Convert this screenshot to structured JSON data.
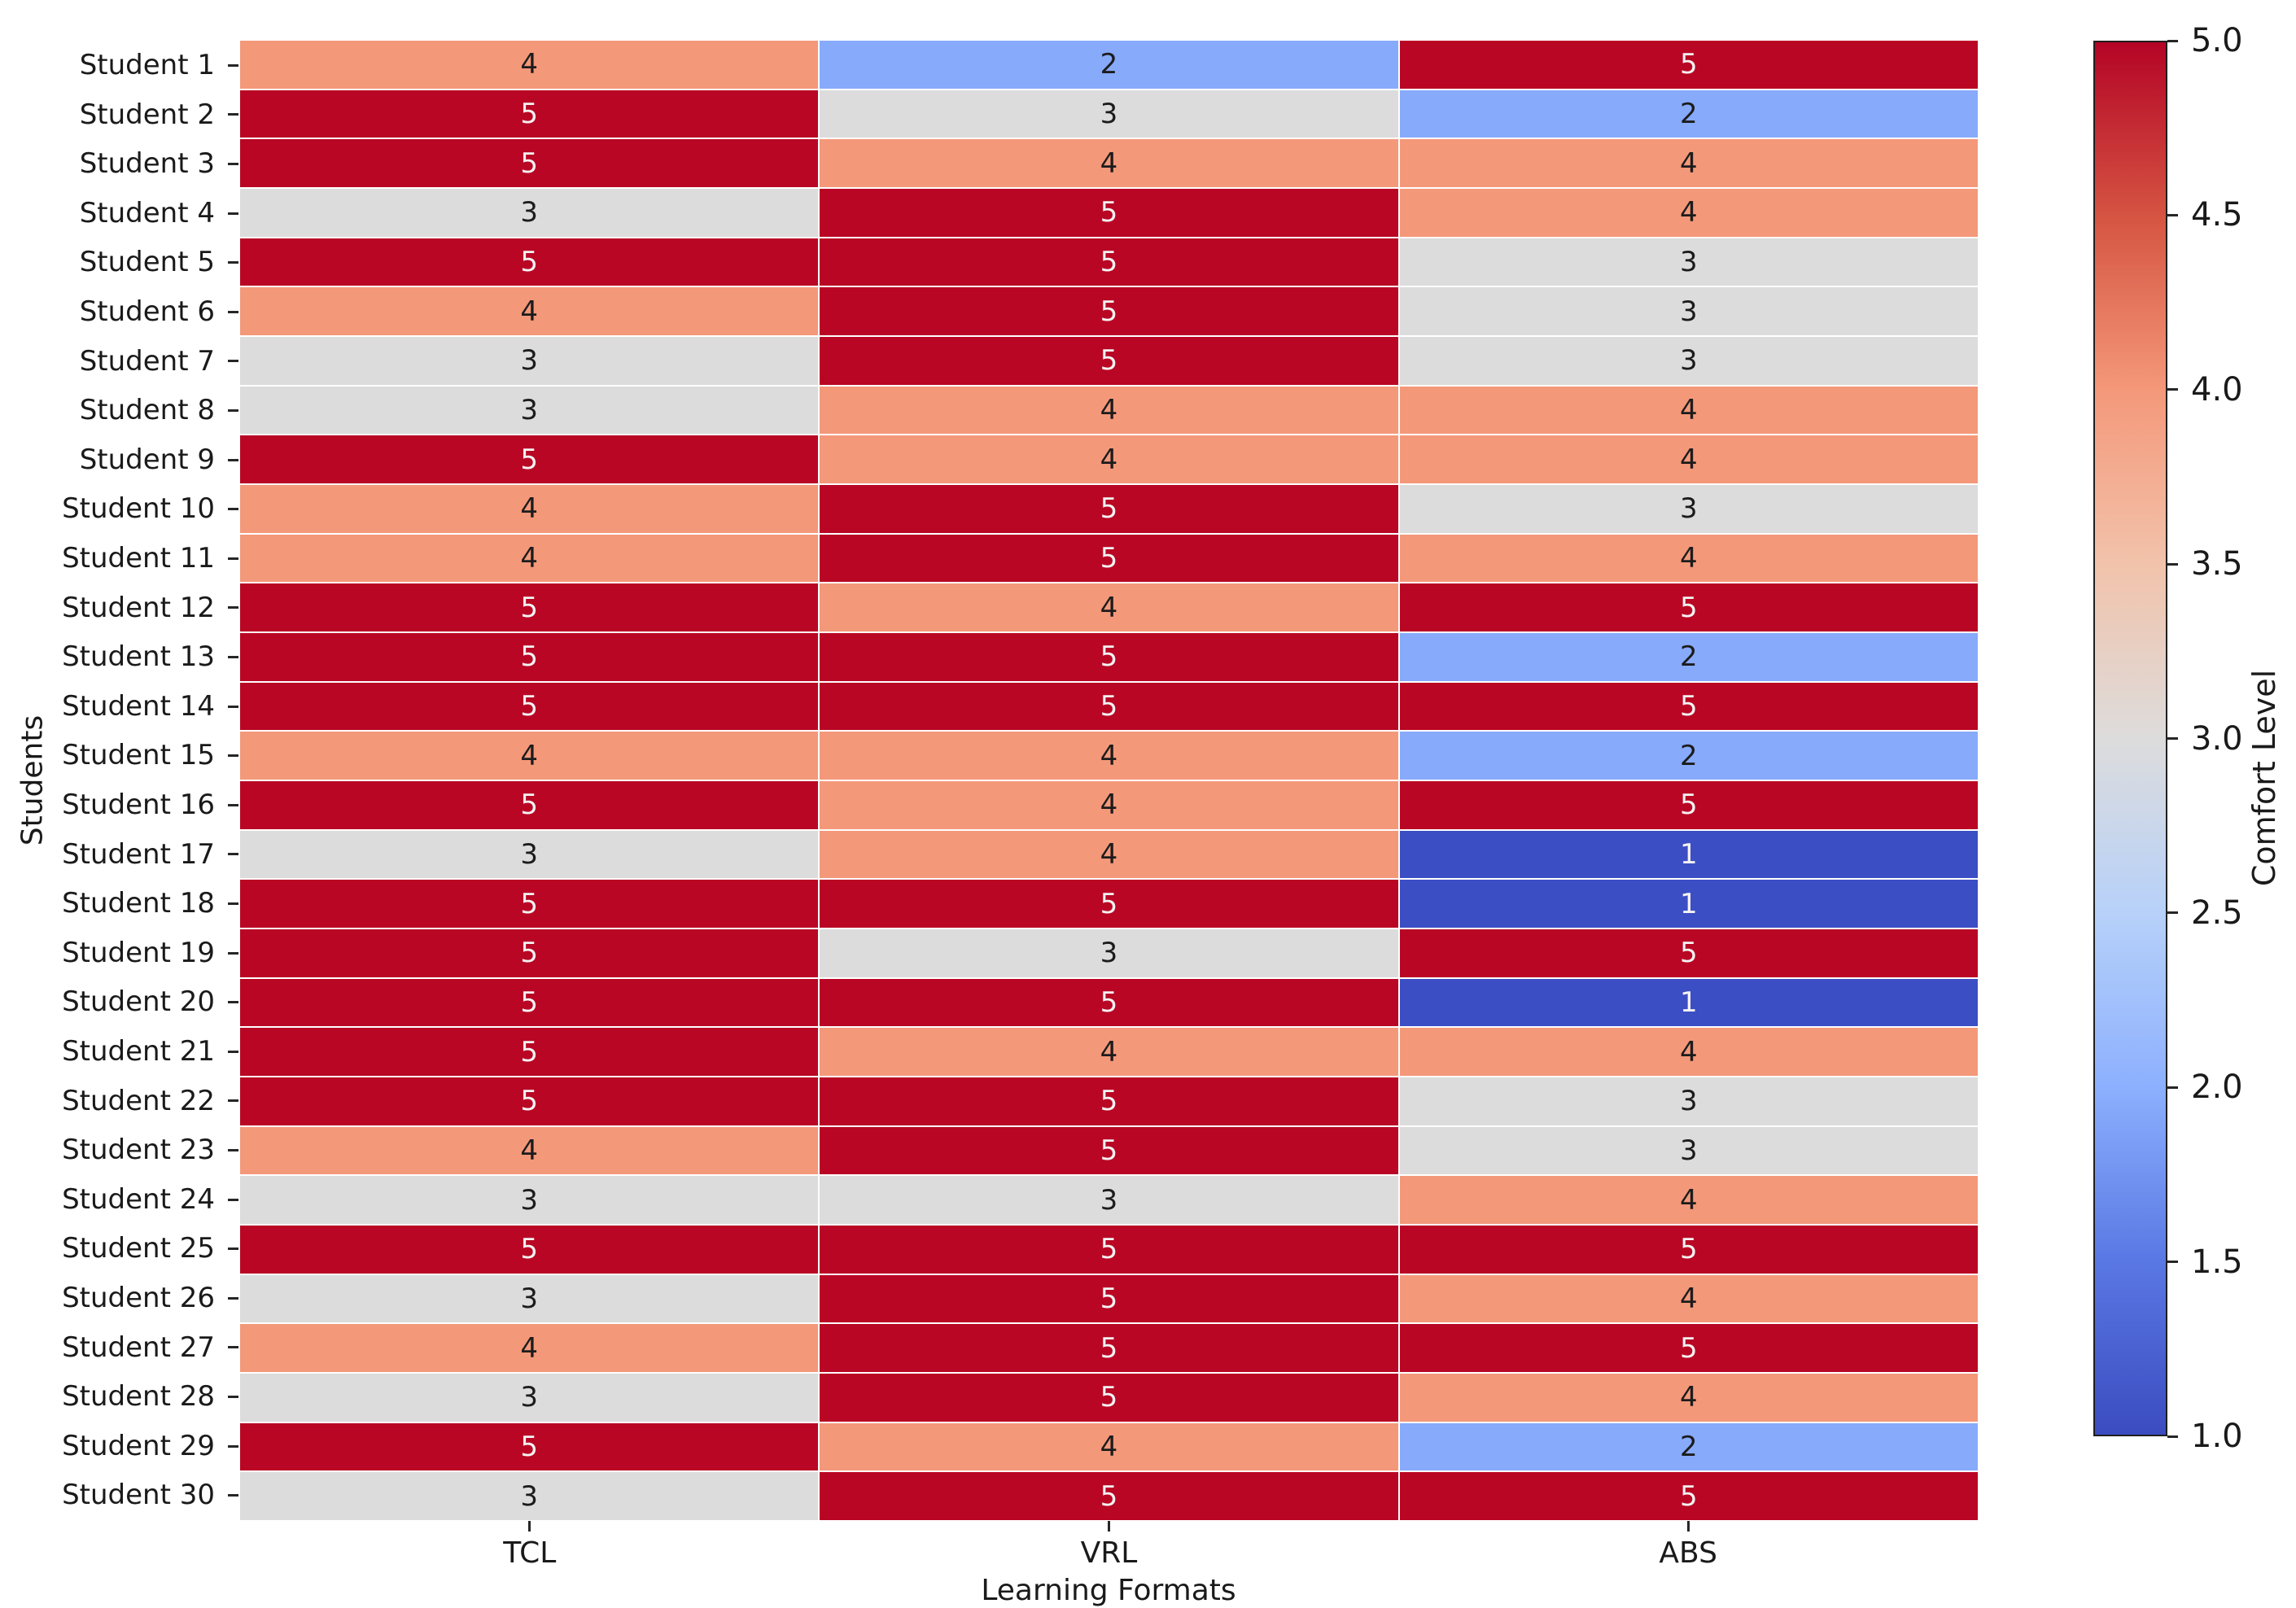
{
  "chart_data": {
    "type": "heatmap",
    "xlabel": "Learning Formats",
    "ylabel": "Students",
    "colorbar_label": "Comfort Level",
    "columns": [
      "TCL",
      "VRL",
      "ABS"
    ],
    "rows": [
      "Student 1",
      "Student 2",
      "Student 3",
      "Student 4",
      "Student 5",
      "Student 6",
      "Student 7",
      "Student 8",
      "Student 9",
      "Student 10",
      "Student 11",
      "Student 12",
      "Student 13",
      "Student 14",
      "Student 15",
      "Student 16",
      "Student 17",
      "Student 18",
      "Student 19",
      "Student 20",
      "Student 21",
      "Student 22",
      "Student 23",
      "Student 24",
      "Student 25",
      "Student 26",
      "Student 27",
      "Student 28",
      "Student 29",
      "Student 30"
    ],
    "values": [
      [
        4,
        2,
        5
      ],
      [
        5,
        3,
        2
      ],
      [
        5,
        4,
        4
      ],
      [
        3,
        5,
        4
      ],
      [
        5,
        5,
        3
      ],
      [
        4,
        5,
        3
      ],
      [
        3,
        5,
        3
      ],
      [
        3,
        4,
        4
      ],
      [
        5,
        4,
        4
      ],
      [
        4,
        5,
        3
      ],
      [
        4,
        5,
        4
      ],
      [
        5,
        4,
        5
      ],
      [
        5,
        5,
        2
      ],
      [
        5,
        5,
        5
      ],
      [
        4,
        4,
        2
      ],
      [
        5,
        4,
        5
      ],
      [
        3,
        4,
        1
      ],
      [
        5,
        5,
        1
      ],
      [
        5,
        3,
        5
      ],
      [
        5,
        5,
        1
      ],
      [
        5,
        4,
        4
      ],
      [
        5,
        5,
        3
      ],
      [
        4,
        5,
        3
      ],
      [
        3,
        3,
        4
      ],
      [
        5,
        5,
        5
      ],
      [
        3,
        5,
        4
      ],
      [
        4,
        5,
        5
      ],
      [
        3,
        5,
        4
      ],
      [
        5,
        4,
        2
      ],
      [
        3,
        5,
        5
      ]
    ],
    "value_range": [
      1,
      5
    ],
    "colormap": "coolwarm",
    "value_colors": {
      "1": "#3c4ec4",
      "2": "#87aafb",
      "3": "#dddcdc",
      "4": "#f4987a",
      "5": "#b90624"
    },
    "annotation_text_dark": "#1c1c1c",
    "annotation_text_light": "#f4f2f2",
    "colorbar_ticks": [
      "5.0",
      "4.5",
      "4.0",
      "3.5",
      "3.0",
      "2.5",
      "2.0",
      "1.5",
      "1.0"
    ],
    "colorbar_gradient_top_to_bottom": [
      "#b40426",
      "#d55442",
      "#f4987a",
      "#f2c3ab",
      "#dddcdc",
      "#b7d1f9",
      "#8db0fe",
      "#5a78e4",
      "#3b4cc0"
    ],
    "legend_position": "right",
    "grid": false
  }
}
